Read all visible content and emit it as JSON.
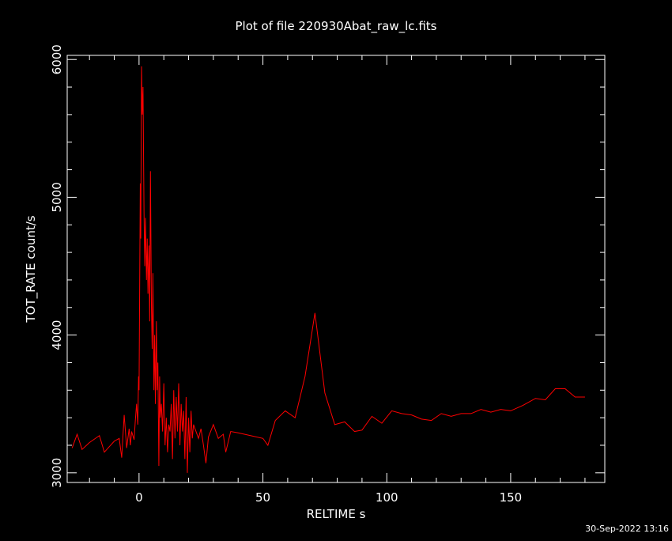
{
  "chart_data": {
    "type": "line",
    "title": "Plot of file 220930Abat_raw_lc.fits",
    "x_label": "RELTIME  s",
    "y_label": "TOT_RATE  count/s",
    "timestamp": "30-Sep-2022 13:16",
    "xlim": [
      -29,
      188
    ],
    "ylim": [
      2930,
      6030
    ],
    "xticks": [
      0,
      50,
      100,
      150
    ],
    "yticks": [
      3000,
      4000,
      5000,
      6000
    ],
    "xminorticks": [
      -20,
      -10,
      10,
      20,
      30,
      40,
      60,
      70,
      80,
      90,
      110,
      120,
      130,
      140,
      160,
      170,
      180
    ],
    "yminorticks": [
      3200,
      3400,
      3600,
      3800,
      4200,
      4400,
      4600,
      4800,
      5200,
      5400,
      5600,
      5800
    ],
    "axis_color": "#ffffff",
    "x": [
      -27,
      -25,
      -23,
      -20,
      -16,
      -14,
      -10,
      -8,
      -7,
      -6,
      -5,
      -4,
      -3.5,
      -3,
      -2,
      -1.5,
      -1,
      -0.5,
      -0.2,
      0,
      0.3,
      0.5,
      0.7,
      1,
      1.3,
      1.6,
      2,
      2.3,
      2.6,
      3,
      3.3,
      3.6,
      4,
      4.3,
      4.6,
      5,
      5.3,
      5.6,
      6,
      6.3,
      6.6,
      7,
      7.3,
      7.6,
      8,
      8.3,
      8.6,
      9,
      9.5,
      10,
      10.5,
      11,
      11.5,
      12,
      12.5,
      13,
      13.5,
      14,
      14.5,
      15,
      15.5,
      16,
      16.5,
      17,
      17.5,
      18,
      18.5,
      19,
      19.5,
      20,
      20.5,
      21,
      21.5,
      22,
      23,
      24,
      25,
      26,
      27,
      28,
      30,
      32,
      34,
      35,
      37,
      40,
      45,
      50,
      52,
      55,
      59,
      63,
      67,
      71,
      75,
      79,
      83,
      87,
      90,
      94,
      98,
      102,
      106,
      110,
      114,
      118,
      122,
      126,
      130,
      134,
      138,
      142,
      146,
      150,
      155,
      160,
      164,
      168,
      172,
      176,
      180
    ],
    "series": [
      {
        "name": "TOT_RATE",
        "color": "#ff0000",
        "values": [
          3180,
          3280,
          3170,
          3220,
          3270,
          3150,
          3230,
          3250,
          3110,
          3420,
          3180,
          3320,
          3200,
          3300,
          3240,
          3380,
          3500,
          3350,
          3700,
          3600,
          4500,
          5100,
          4700,
          5950,
          5600,
          5800,
          4900,
          4500,
          4850,
          4400,
          4700,
          4300,
          4650,
          4100,
          5190,
          4200,
          3900,
          4450,
          3600,
          4000,
          3500,
          4100,
          3600,
          3800,
          3050,
          3700,
          3400,
          3500,
          3300,
          3650,
          3200,
          3400,
          3150,
          3350,
          3300,
          3500,
          3100,
          3600,
          3250,
          3550,
          3300,
          3650,
          3200,
          3500,
          3300,
          3450,
          3100,
          3550,
          3000,
          3400,
          3150,
          3450,
          3250,
          3350,
          3300,
          3250,
          3320,
          3200,
          3070,
          3260,
          3350,
          3250,
          3280,
          3150,
          3300,
          3290,
          3270,
          3250,
          3200,
          3380,
          3450,
          3400,
          3700,
          4160,
          3580,
          3350,
          3370,
          3300,
          3310,
          3410,
          3360,
          3450,
          3430,
          3420,
          3390,
          3380,
          3430,
          3410,
          3430,
          3430,
          3460,
          3440,
          3460,
          3450,
          3490,
          3540,
          3530,
          3610,
          3610,
          3550,
          3550
        ]
      }
    ]
  }
}
